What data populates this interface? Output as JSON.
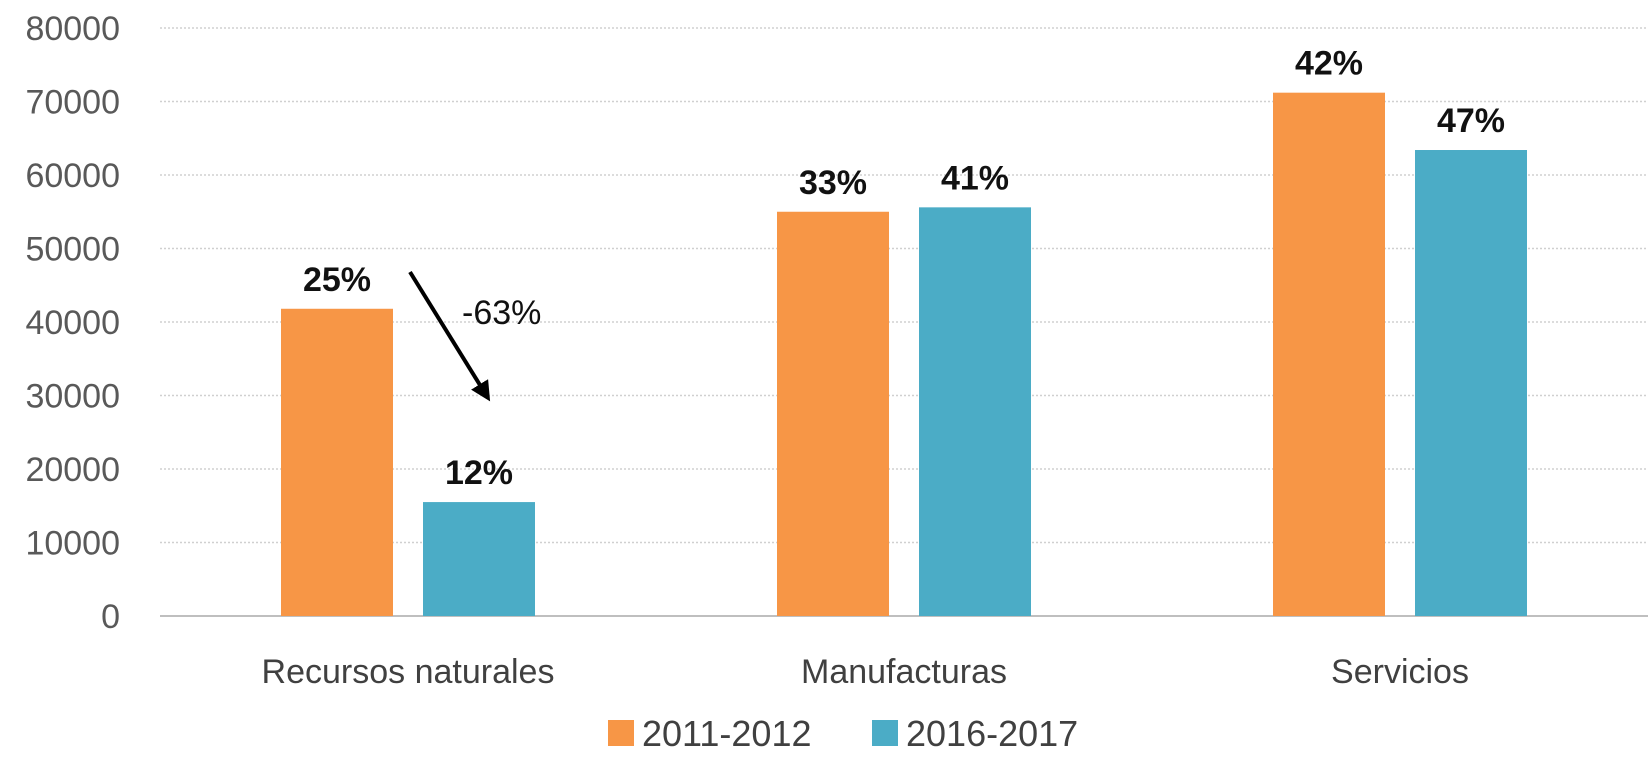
{
  "chart_data": {
    "type": "bar",
    "categories": [
      "Recursos naturales",
      "Manufacturas",
      "Servicios"
    ],
    "series": [
      {
        "name": "2011-2012",
        "color": "#F79646",
        "values": [
          41800,
          55000,
          71200
        ],
        "labels": [
          "25%",
          "33%",
          "42%"
        ]
      },
      {
        "name": "2016-2017",
        "color": "#4BACC6",
        "values": [
          15500,
          55600,
          63400
        ],
        "labels": [
          "12%",
          "41%",
          "47%"
        ]
      }
    ],
    "yticks": [
      "0",
      "10000",
      "20000",
      "30000",
      "40000",
      "50000",
      "60000",
      "70000",
      "80000"
    ],
    "ylim": [
      0,
      80000
    ],
    "grid": true,
    "legend_position": "bottom",
    "annotation": {
      "text": "-63%",
      "category": "Recursos naturales"
    }
  }
}
